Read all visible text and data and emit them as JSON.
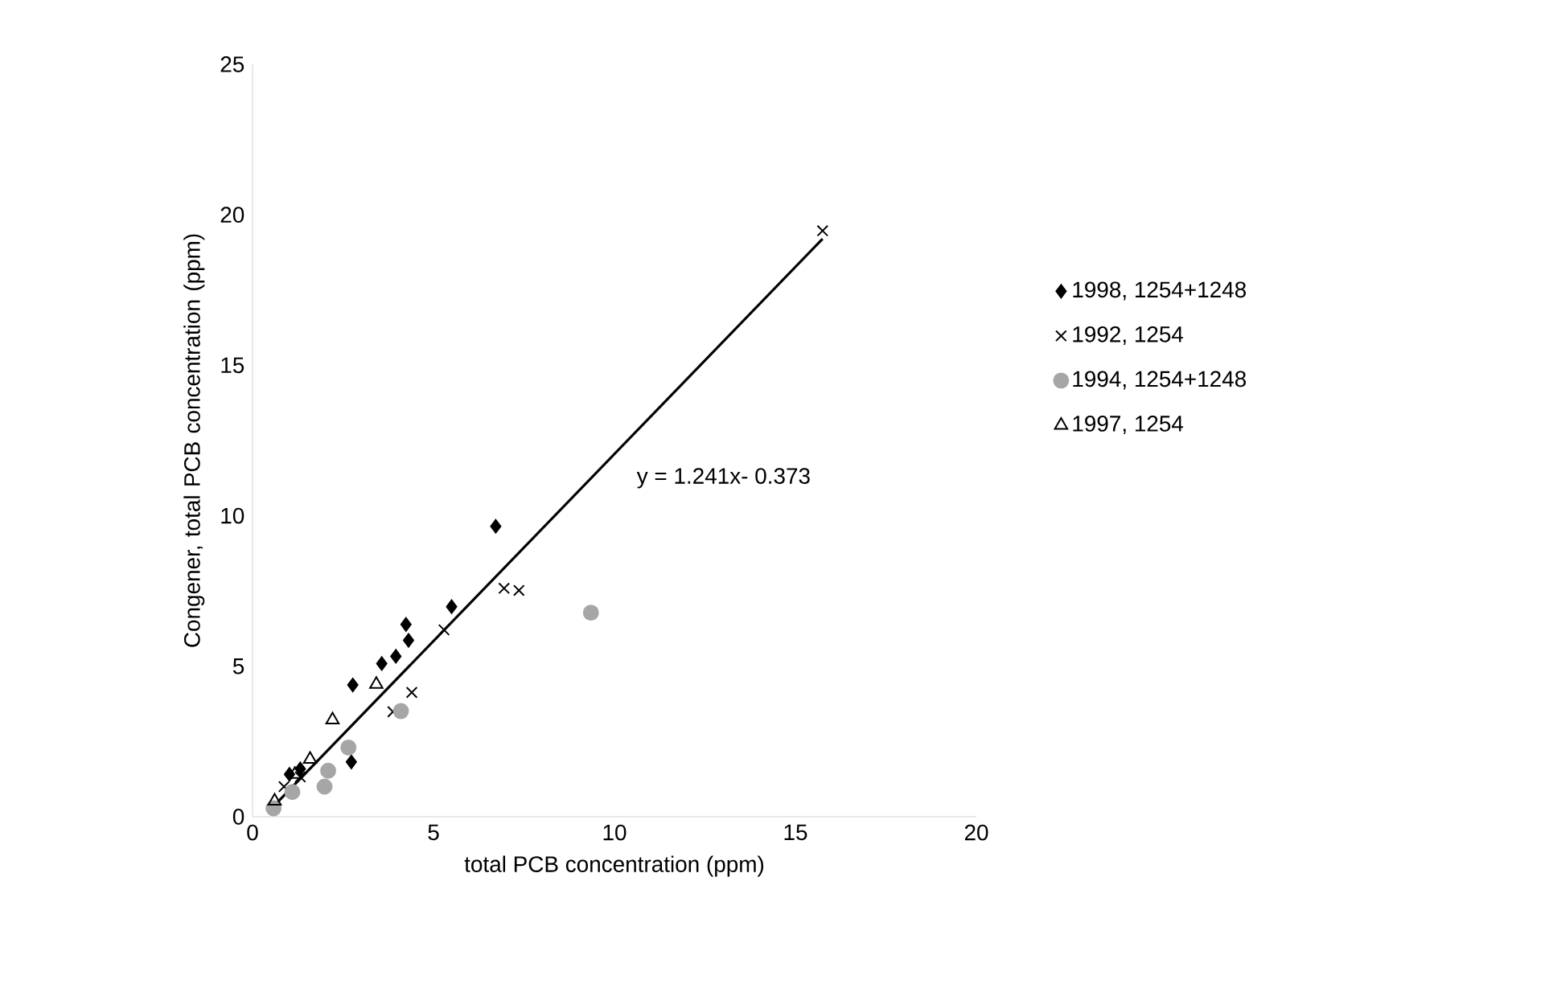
{
  "chart_data": {
    "type": "scatter",
    "xlabel": "total PCB concentration (ppm)",
    "ylabel": "Congener, total PCB concentration (ppm)",
    "xlim": [
      0,
      20
    ],
    "ylim": [
      0,
      25
    ],
    "xticks": [
      0,
      5,
      10,
      15,
      20
    ],
    "yticks": [
      0,
      5,
      10,
      15,
      20,
      25
    ],
    "grid": false,
    "legend": "right",
    "annotations": [
      "y = 1.241x- 0.373"
    ],
    "series": [
      {
        "name": "1998, 1254+1248",
        "color": "#000000",
        "marker": "diamond",
        "x": [
          6.72,
          5.5,
          4.24,
          4.31,
          3.96,
          3.57,
          2.77,
          2.73,
          1.02,
          1.32
        ],
        "values": [
          9.65,
          6.98,
          6.39,
          5.86,
          5.33,
          5.09,
          4.38,
          1.82,
          1.41,
          1.59
        ]
      },
      {
        "name": "1992, 1254",
        "color": "#000000",
        "marker": "cross",
        "x": [
          15.75,
          6.95,
          7.36,
          5.29,
          4.4,
          3.88,
          1.32,
          0.87
        ],
        "values": [
          19.47,
          7.59,
          7.52,
          6.21,
          4.13,
          3.49,
          1.32,
          1.0
        ]
      },
      {
        "name": "1994, 1254+1248",
        "color": "#a6a6a6",
        "marker": "circle",
        "x": [
          9.35,
          4.1,
          2.65,
          2.09,
          1.99,
          1.1,
          0.58
        ],
        "values": [
          6.78,
          3.51,
          2.3,
          1.53,
          1.0,
          0.82,
          0.28
        ]
      },
      {
        "name": "1997, 1254",
        "color": "#000000",
        "marker": "triangle",
        "x": [
          3.42,
          2.21,
          1.59,
          1.17,
          0.61
        ],
        "values": [
          4.4,
          3.22,
          1.91,
          1.41,
          0.52
        ]
      },
      {
        "type": "line",
        "color": "#000000",
        "marker": "none",
        "x": [
          0.6,
          15.75
        ],
        "values": [
          0.37,
          19.2
        ]
      }
    ]
  }
}
